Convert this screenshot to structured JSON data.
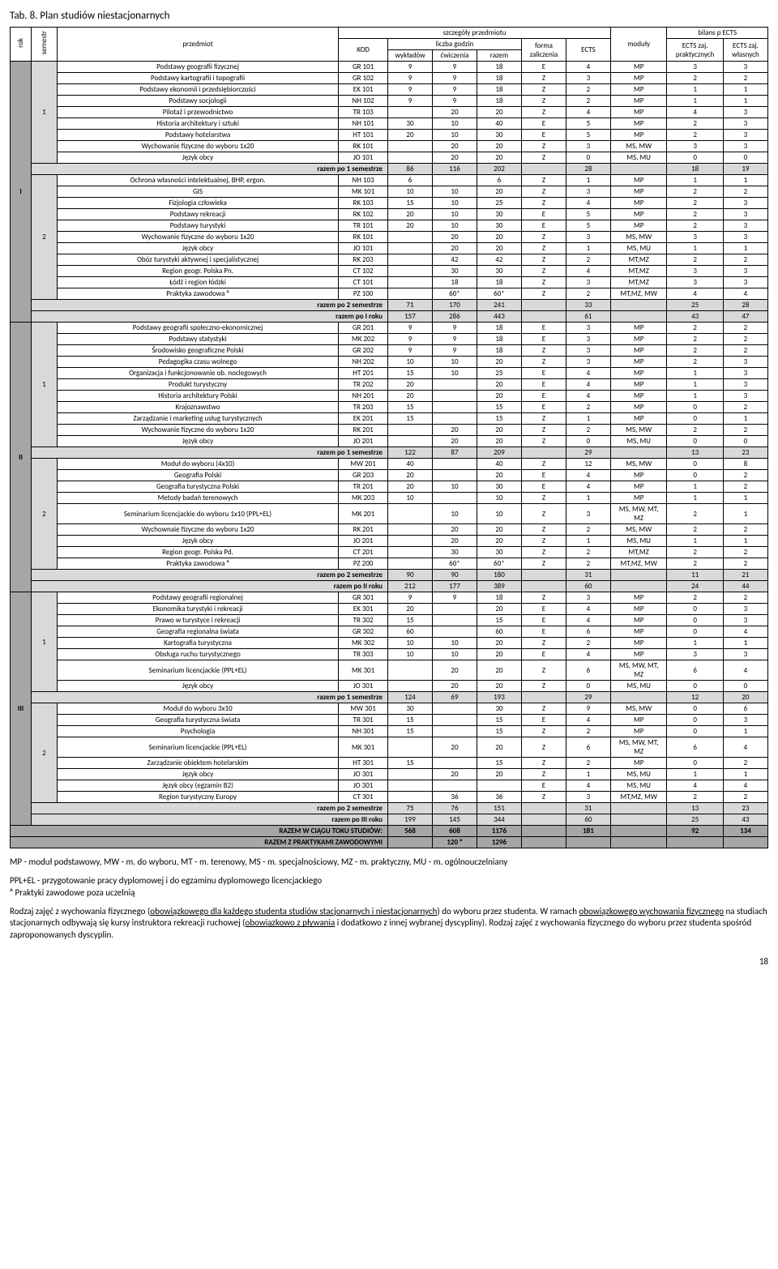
{
  "title": "Tab. 8. Plan studiów niestacjonarnych",
  "headers": {
    "rok": "rok",
    "semestr": "semestr",
    "przedmiot": "przedmiot",
    "szczegoly": "szczegóły przedmiotu",
    "moduly": "moduły",
    "bilans": "bilans p ECTS",
    "kod": "KOD",
    "liczba": "liczba godzin",
    "forma": "forma zaliczenia",
    "ects": "ECTS",
    "ects_prakt": "ECTS zaj. praktycznych",
    "ects_wlas": "ECTS zaj. własnych",
    "wyklad": "wykładów",
    "cwicz": "ćwiczenia",
    "razem": "razem"
  },
  "roks": [
    {
      "label": "I",
      "semCount": 2,
      "semesters": [
        {
          "label": "1",
          "rows": [
            [
              "Podstawy geografii fizycznej",
              "GR 101",
              "9",
              "9",
              "18",
              "E",
              "4",
              "MP",
              "3",
              "3"
            ],
            [
              "Podstawy kartografii i topografii",
              "GR 102",
              "9",
              "9",
              "18",
              "Z",
              "3",
              "MP",
              "2",
              "2"
            ],
            [
              "Podstawy ekonomii i przedsiębiorczości",
              "EK 101",
              "9",
              "9",
              "18",
              "Z",
              "2",
              "MP",
              "1",
              "1"
            ],
            [
              "Podstawy socjologii",
              "NH 102",
              "9",
              "9",
              "18",
              "Z",
              "2",
              "MP",
              "1",
              "1"
            ],
            [
              "Pilotaż i przewodnictwo",
              "TR 103",
              "",
              "20",
              "20",
              "Z",
              "4",
              "MP",
              "4",
              "3"
            ],
            [
              "Historia architektury i sztuki",
              "NH 101",
              "30",
              "10",
              "40",
              "E",
              "5",
              "MP",
              "2",
              "3"
            ],
            [
              "Podstawy hotelarstwa",
              "HT 101",
              "20",
              "10",
              "30",
              "E",
              "5",
              "MP",
              "2",
              "3"
            ],
            [
              "Wychowanie fizyczne do wyboru 1x20",
              "RK 101",
              "",
              "20",
              "20",
              "Z",
              "3",
              "MS, MW",
              "3",
              "3"
            ],
            [
              "Język obcy",
              "JO 101",
              "",
              "20",
              "20",
              "Z",
              "0",
              "MS, MU",
              "0",
              "0"
            ]
          ],
          "sum": {
            "label": "razem po 1 semestrze",
            "w": "86",
            "c": "116",
            "r": "202",
            "e": "28",
            "p": "18",
            "o": "19"
          }
        },
        {
          "label": "2",
          "rows": [
            [
              "Ochrona własności intelektualnej, BHP, ergon.",
              "NH 103",
              "6",
              "",
              "6",
              "Z",
              "1",
              "MP",
              "1",
              "1"
            ],
            [
              "GIS",
              "MK 101",
              "10",
              "10",
              "20",
              "Z",
              "3",
              "MP",
              "2",
              "2"
            ],
            [
              "Fizjologia człowieka",
              "RK 103",
              "15",
              "10",
              "25",
              "Z",
              "4",
              "MP",
              "2",
              "3"
            ],
            [
              "Podstawy rekreacji",
              "RK 102",
              "20",
              "10",
              "30",
              "E",
              "5",
              "MP",
              "2",
              "3"
            ],
            [
              "Podstawy turystyki",
              "TR 101",
              "20",
              "10",
              "30",
              "E",
              "5",
              "MP",
              "2",
              "3"
            ],
            [
              "Wychowanie fizyczne do wyboru 1x20",
              "RK 101",
              "",
              "20",
              "20",
              "Z",
              "3",
              "MS, MW",
              "3",
              "3"
            ],
            [
              "Język obcy",
              "JO 101",
              "",
              "20",
              "20",
              "Z",
              "1",
              "MS, MU",
              "1",
              "1"
            ],
            [
              "Obóz turystyki aktywnej i specjalistycznej",
              "RK 203",
              "",
              "42",
              "42",
              "Z",
              "2",
              "MT,MZ",
              "2",
              "2"
            ],
            [
              "Region geogr. Polska Pn.",
              "CT 102",
              "",
              "30",
              "30",
              "Z",
              "4",
              "MT,MZ",
              "3",
              "3"
            ],
            [
              "Łódź i region łódzki",
              "CT 101",
              "",
              "18",
              "18",
              "Z",
              "3",
              "MT,MZ",
              "3",
              "3"
            ],
            [
              "Praktyka zawodowa ᴬ",
              "PZ 100",
              "",
              "60*",
              "60*",
              "Z",
              "2",
              "MT,MZ, MW",
              "4",
              "4"
            ]
          ],
          "sum": {
            "label": "razem po 2 semestrze",
            "w": "71",
            "c": "170",
            "r": "241",
            "e": "33",
            "p": "25",
            "o": "28"
          },
          "yearSum": {
            "label": "razem po I roku",
            "w": "157",
            "c": "286",
            "r": "443",
            "e": "61",
            "p": "43",
            "o": "47"
          }
        }
      ]
    },
    {
      "label": "II",
      "semCount": 2,
      "semesters": [
        {
          "label": "1",
          "rows": [
            [
              "Podstawy geografii społeczno-ekonomicznej",
              "GR 201",
              "9",
              "9",
              "18",
              "E",
              "3",
              "MP",
              "2",
              "2"
            ],
            [
              "Podstawy statystyki",
              "MK 202",
              "9",
              "9",
              "18",
              "E",
              "3",
              "MP",
              "2",
              "2"
            ],
            [
              "Środowisko geograficzne Polski",
              "GR 202",
              "9",
              "9",
              "18",
              "Z",
              "3",
              "MP",
              "2",
              "2"
            ],
            [
              "Pedagogika czasu wolnego",
              "NH 202",
              "10",
              "10",
              "20",
              "Z",
              "3",
              "MP",
              "2",
              "3"
            ],
            [
              "Organizacja i funkcjonowanie ob. noclegowych",
              "HT 201",
              "15",
              "10",
              "25",
              "E",
              "4",
              "MP",
              "1",
              "3"
            ],
            [
              "Produkt turystyczny",
              "TR 202",
              "20",
              "",
              "20",
              "E",
              "4",
              "MP",
              "1",
              "3"
            ],
            [
              "Historia architektury Polski",
              "NH 201",
              "20",
              "",
              "20",
              "E",
              "4",
              "MP",
              "1",
              "3"
            ],
            [
              "Krajoznawstwo",
              "TR 203",
              "15",
              "",
              "15",
              "E",
              "2",
              "MP",
              "0",
              "2"
            ],
            [
              "Zarządzanie i marketing usług turystycznych",
              "EK 201",
              "15",
              "",
              "15",
              "Z",
              "1",
              "MP",
              "0",
              "1"
            ],
            [
              "Wychowanie fizyczne do wyboru 1x20",
              "RK 201",
              "",
              "20",
              "20",
              "Z",
              "2",
              "MS, MW",
              "2",
              "2"
            ],
            [
              "Język obcy",
              "JO 201",
              "",
              "20",
              "20",
              "Z",
              "0",
              "MS, MU",
              "0",
              "0"
            ]
          ],
          "sum": {
            "label": "razem po 1 semestrze",
            "w": "122",
            "c": "87",
            "r": "209",
            "e": "29",
            "p": "13",
            "o": "23"
          }
        },
        {
          "label": "2",
          "rows": [
            [
              "Moduł do wyboru (4x10)",
              "MW 201",
              "40",
              "",
              "40",
              "Z",
              "12",
              "MS, MW",
              "0",
              "8"
            ],
            [
              "Geografia Polski",
              "GR 203",
              "20",
              "",
              "20",
              "E",
              "4",
              "MP",
              "0",
              "2"
            ],
            [
              "Geografia turystyczna Polski",
              "TR 201",
              "20",
              "10",
              "30",
              "E",
              "4",
              "MP",
              "1",
              "2"
            ],
            [
              "Metody badań terenowych",
              "MK 203",
              "10",
              "",
              "10",
              "Z",
              "1",
              "MP",
              "1",
              "1"
            ],
            [
              "Seminarium licencjackie do wyboru 1x10 (PPL+EL)",
              "MK 201",
              "",
              "10",
              "10",
              "Z",
              "3",
              "MS, MW, MT, MZ",
              "2",
              "1"
            ],
            [
              "Wychownaie fizyczne do wyboru 1x20",
              "RK 201",
              "",
              "20",
              "20",
              "Z",
              "2",
              "MS, MW",
              "2",
              "2"
            ],
            [
              "Język obcy",
              "JO 201",
              "",
              "20",
              "20",
              "Z",
              "1",
              "MS, MU",
              "1",
              "1"
            ],
            [
              "Region geogr. Polska Pd.",
              "CT 201",
              "",
              "30",
              "30",
              "Z",
              "2",
              "MT,MZ",
              "2",
              "2"
            ],
            [
              "Praktyka zawodowa ᴬ",
              "PZ 200",
              "",
              "60*",
              "60*",
              "Z",
              "2",
              "MT,MZ, MW",
              "2",
              "2"
            ]
          ],
          "sum": {
            "label": "razem po 2 semestrze",
            "w": "90",
            "c": "90",
            "r": "180",
            "e": "31",
            "p": "11",
            "o": "21"
          },
          "yearSum": {
            "label": "razem po II roku",
            "w": "212",
            "c": "177",
            "r": "389",
            "e": "60",
            "p": "24",
            "o": "44"
          }
        }
      ]
    },
    {
      "label": "III",
      "semCount": 2,
      "semesters": [
        {
          "label": "1",
          "rows": [
            [
              "Podstawy geografii regionalnej",
              "GR 301",
              "9",
              "9",
              "18",
              "Z",
              "3",
              "MP",
              "2",
              "2"
            ],
            [
              "Ekonomika turystyki i rekreacji",
              "EK 301",
              "20",
              "",
              "20",
              "E",
              "4",
              "MP",
              "0",
              "3"
            ],
            [
              "Prawo w turystyce i rekreacji",
              "TR 302",
              "15",
              "",
              "15",
              "E",
              "4",
              "MP",
              "0",
              "3"
            ],
            [
              "Geografia regionalna świata",
              "GR 302",
              "60",
              "",
              "60",
              "E",
              "6",
              "MP",
              "0",
              "4"
            ],
            [
              "Kartografia turystyczna",
              "MK 302",
              "10",
              "10",
              "20",
              "Z",
              "2",
              "MP",
              "1",
              "1"
            ],
            [
              "Obsługa ruchu turystycznego",
              "TR 303",
              "10",
              "10",
              "20",
              "E",
              "4",
              "MP",
              "3",
              "3"
            ],
            [
              "Seminarium licencjackie (PPL+EL)",
              "MK 301",
              "",
              "20",
              "20",
              "Z",
              "6",
              "MS, MW, MT, MZ",
              "6",
              "4"
            ],
            [
              "Język obcy",
              "JO 301",
              "",
              "20",
              "20",
              "Z",
              "0",
              "MS, MU",
              "0",
              "0"
            ]
          ],
          "sum": {
            "label": "razem po 1 semestrze",
            "w": "124",
            "c": "69",
            "r": "193",
            "e": "29",
            "p": "12",
            "o": "20"
          }
        },
        {
          "label": "2",
          "rows": [
            [
              "Moduł do wyboru 3x10",
              "MW 301",
              "30",
              "",
              "30",
              "Z",
              "9",
              "MS, MW",
              "0",
              "6"
            ],
            [
              "Geografia turystyczna świata",
              "TR 301",
              "15",
              "",
              "15",
              "E",
              "4",
              "MP",
              "0",
              "3"
            ],
            [
              "Psychologia",
              "NH 301",
              "15",
              "",
              "15",
              "Z",
              "2",
              "MP",
              "0",
              "1"
            ],
            [
              "Seminarium licencjackie (PPL+EL)",
              "MK 301",
              "",
              "20",
              "20",
              "Z",
              "6",
              "MS, MW, MT, MZ",
              "6",
              "4"
            ],
            [
              "Zarządzanie obiektem hotelarskim",
              "HT 301",
              "15",
              "",
              "15",
              "Z",
              "2",
              "MP",
              "0",
              "2"
            ],
            [
              "Język obcy",
              "JO 301",
              "",
              "20",
              "20",
              "Z",
              "1",
              "MS, MU",
              "1",
              "1"
            ],
            [
              "Język obcy (egzamin B2)",
              "JO 301",
              "",
              "",
              "",
              "E",
              "4",
              "MS, MU",
              "4",
              "4"
            ],
            [
              "Region turystyczny Europy",
              "CT 301",
              "",
              "36",
              "36",
              "Z",
              "3",
              "MT,MZ, MW",
              "2",
              "2"
            ]
          ],
          "sum": {
            "label": "razem po 2 semestrze",
            "w": "75",
            "c": "76",
            "r": "151",
            "e": "31",
            "p": "13",
            "o": "23"
          },
          "yearSum": {
            "label": "razem po III roku",
            "w": "199",
            "c": "145",
            "r": "344",
            "e": "60",
            "p": "25",
            "o": "43"
          }
        }
      ]
    }
  ],
  "grand": {
    "label": "RAZEM  W CIĄGU TOKU STUDIÓW:",
    "w": "568",
    "c": "608",
    "r": "1176",
    "e": "181",
    "p": "92",
    "o": "134"
  },
  "grand2": {
    "label": "RAZEM Z PRAKTYKAMI ZAWODOWYMI",
    "w": "",
    "c": "120 ᴬ",
    "r": "1296"
  },
  "foot1": "MP - moduł podstawowy, MW - m. do wyboru, MT - m. terenowy, MS - m. specjalnościowy, MZ - m. praktyczny, MU - m. ogólnouczelniany",
  "foot2": "PPL+EL - przygotowanie pracy dyplomowej i do egzaminu dyplomowego licencjackiego",
  "foot3": "ᴬ Praktyki zawodowe poza uczelnią",
  "foot4a": "Rodzaj zajęć z wychowania fizycznego (",
  "foot4u": "obowiązkowego dla każdego studenta studiów stacjonarnych i niestacjonarnych",
  "foot4b": ") do wyboru przez studenta. W ramach ",
  "foot4u2": "obowiązkowego wychowania fizycznego",
  "foot4c": " na studiach stacjonarnych odbywają się kursy instruktora rekreacji ruchowej (",
  "foot4u3": "obowiązkowo z pływania",
  "foot4d": " i dodatkowo z innej wybranej dyscypliny). Rodzaj zajęć z wychowania fizycznego do wyboru przez studenta spośród zaproponowanych dyscyplin.",
  "page": "18"
}
